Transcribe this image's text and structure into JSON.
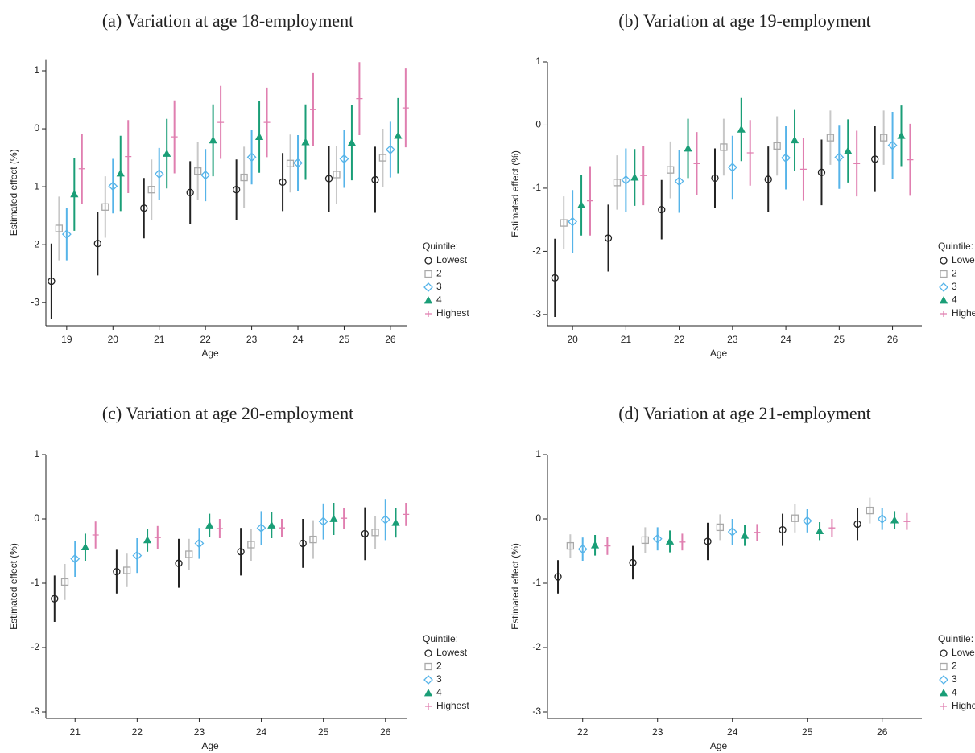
{
  "chart_data": [
    {
      "type": "errorbar",
      "title": "(a) Variation at age 18-employment",
      "xlabel": "Age",
      "ylabel": "Estimated effect (%)",
      "legend_title": "Quintile:",
      "x": [
        19,
        20,
        21,
        22,
        23,
        24,
        25,
        26
      ],
      "xlim": [
        18.55,
        26.35
      ],
      "xticks": [
        19,
        20,
        21,
        22,
        23,
        24,
        25,
        26
      ],
      "ylim": [
        -3.4,
        1.2
      ],
      "yticks": [
        1,
        0,
        -1,
        -2,
        -3
      ],
      "series": [
        {
          "name": "Lowest",
          "color": "#222222",
          "marker": "circle",
          "values": [
            -2.63,
            -1.98,
            -1.37,
            -1.1,
            -1.05,
            -0.92,
            -0.86,
            -0.88
          ],
          "errors": [
            0.65,
            0.55,
            0.52,
            0.54,
            0.52,
            0.5,
            0.57,
            0.57
          ]
        },
        {
          "name": "2",
          "color": "#a9a9a9",
          "marker": "square",
          "values": [
            -1.72,
            -1.35,
            -1.05,
            -0.73,
            -0.84,
            -0.6,
            -0.79,
            -0.5
          ],
          "errors": [
            0.55,
            0.53,
            0.52,
            0.5,
            0.53,
            0.5,
            0.5,
            0.5
          ]
        },
        {
          "name": "3",
          "color": "#56b4e9",
          "marker": "diamond",
          "values": [
            -1.82,
            -0.99,
            -0.78,
            -0.8,
            -0.49,
            -0.59,
            -0.52,
            -0.36
          ],
          "errors": [
            0.45,
            0.47,
            0.45,
            0.45,
            0.47,
            0.48,
            0.5,
            0.48
          ]
        },
        {
          "name": "4",
          "color": "#1a9e77",
          "marker": "triangle",
          "values": [
            -1.13,
            -0.77,
            -0.43,
            -0.2,
            -0.14,
            -0.23,
            -0.24,
            -0.12
          ],
          "errors": [
            0.63,
            0.65,
            0.6,
            0.62,
            0.62,
            0.65,
            0.65,
            0.65
          ]
        },
        {
          "name": "Highest",
          "color": "#e07fb0",
          "marker": "plus",
          "values": [
            -0.69,
            -0.48,
            -0.14,
            0.11,
            0.11,
            0.33,
            0.52,
            0.36
          ],
          "errors": [
            0.6,
            0.63,
            0.63,
            0.63,
            0.6,
            0.63,
            0.63,
            0.68
          ]
        }
      ]
    },
    {
      "type": "errorbar",
      "title": "(b) Variation at age 19-employment",
      "xlabel": "Age",
      "ylabel": "Estimated effect (%)",
      "legend_title": "Quintile:",
      "x": [
        20,
        21,
        22,
        23,
        24,
        25,
        26
      ],
      "xlim": [
        19.53,
        26.55
      ],
      "xticks": [
        20,
        21,
        22,
        23,
        24,
        25,
        26
      ],
      "ylim": [
        -3.18,
        1.0
      ],
      "yticks": [
        1,
        0,
        -1,
        -2,
        -3
      ],
      "series": [
        {
          "name": "Lowest",
          "color": "#222222",
          "marker": "circle",
          "values": [
            -2.42,
            -1.79,
            -1.34,
            -0.84,
            -0.86,
            -0.75,
            -0.54
          ],
          "errors": [
            0.62,
            0.53,
            0.47,
            0.47,
            0.52,
            0.52,
            0.52
          ]
        },
        {
          "name": "2",
          "color": "#a9a9a9",
          "marker": "square",
          "values": [
            -1.55,
            -0.91,
            -0.71,
            -0.35,
            -0.33,
            -0.2,
            -0.2
          ],
          "errors": [
            0.42,
            0.43,
            0.45,
            0.45,
            0.47,
            0.43,
            0.43
          ]
        },
        {
          "name": "3",
          "color": "#56b4e9",
          "marker": "diamond",
          "values": [
            -1.53,
            -0.87,
            -0.89,
            -0.67,
            -0.52,
            -0.51,
            -0.32
          ],
          "errors": [
            0.5,
            0.5,
            0.5,
            0.5,
            0.5,
            0.5,
            0.53
          ]
        },
        {
          "name": "4",
          "color": "#1a9e77",
          "marker": "triangle",
          "values": [
            -1.27,
            -0.83,
            -0.37,
            -0.07,
            -0.24,
            -0.41,
            -0.17
          ],
          "errors": [
            0.48,
            0.45,
            0.47,
            0.5,
            0.48,
            0.5,
            0.48
          ]
        },
        {
          "name": "Highest",
          "color": "#e07fb0",
          "marker": "plus",
          "values": [
            -1.2,
            -0.8,
            -0.61,
            -0.44,
            -0.7,
            -0.61,
            -0.55
          ],
          "errors": [
            0.55,
            0.47,
            0.5,
            0.52,
            0.5,
            0.52,
            0.57
          ]
        }
      ]
    },
    {
      "type": "errorbar",
      "title": "(c) Variation at age 20-employment",
      "xlabel": "Age",
      "ylabel": "Estimated effect (%)",
      "legend_title": "Quintile:",
      "x": [
        21,
        22,
        23,
        24,
        25,
        26
      ],
      "xlim": [
        20.53,
        26.34
      ],
      "xticks": [
        21,
        22,
        23,
        24,
        25,
        26
      ],
      "ylim": [
        -3.1,
        1.0
      ],
      "yticks": [
        1,
        0,
        -1,
        -2,
        -3
      ],
      "series": [
        {
          "name": "Lowest",
          "color": "#222222",
          "marker": "circle",
          "values": [
            -1.24,
            -0.82,
            -0.69,
            -0.51,
            -0.38,
            -0.23
          ],
          "errors": [
            0.36,
            0.34,
            0.38,
            0.37,
            0.38,
            0.41
          ]
        },
        {
          "name": "2",
          "color": "#a9a9a9",
          "marker": "square",
          "values": [
            -0.98,
            -0.8,
            -0.55,
            -0.4,
            -0.32,
            -0.21
          ],
          "errors": [
            0.28,
            0.26,
            0.24,
            0.25,
            0.3,
            0.26
          ]
        },
        {
          "name": "3",
          "color": "#56b4e9",
          "marker": "diamond",
          "values": [
            -0.62,
            -0.57,
            -0.38,
            -0.14,
            -0.04,
            -0.01
          ],
          "errors": [
            0.28,
            0.27,
            0.24,
            0.26,
            0.28,
            0.32
          ]
        },
        {
          "name": "4",
          "color": "#1a9e77",
          "marker": "triangle",
          "values": [
            -0.44,
            -0.33,
            -0.1,
            -0.1,
            0.0,
            -0.06
          ],
          "errors": [
            0.21,
            0.18,
            0.18,
            0.2,
            0.25,
            0.23
          ]
        },
        {
          "name": "Highest",
          "color": "#e07fb0",
          "marker": "plus",
          "values": [
            -0.25,
            -0.29,
            -0.15,
            -0.14,
            0.01,
            0.07
          ],
          "errors": [
            0.21,
            0.18,
            0.15,
            0.14,
            0.16,
            0.18
          ]
        }
      ]
    },
    {
      "type": "errorbar",
      "title": "(d) Variation at age 21-employment",
      "xlabel": "Age",
      "ylabel": "Estimated effect (%)",
      "legend_title": "Quintile:",
      "x": [
        22,
        23,
        24,
        25,
        26
      ],
      "xlim": [
        21.53,
        26.53
      ],
      "xticks": [
        22,
        23,
        24,
        25,
        26
      ],
      "ylim": [
        -3.1,
        1.0
      ],
      "yticks": [
        1,
        0,
        -1,
        -2,
        -3
      ],
      "series": [
        {
          "name": "Lowest",
          "color": "#222222",
          "marker": "circle",
          "values": [
            -0.9,
            -0.68,
            -0.35,
            -0.17,
            -0.08
          ],
          "errors": [
            0.26,
            0.26,
            0.29,
            0.25,
            0.25
          ]
        },
        {
          "name": "2",
          "color": "#a9a9a9",
          "marker": "square",
          "values": [
            -0.42,
            -0.33,
            -0.13,
            0.01,
            0.13
          ],
          "errors": [
            0.18,
            0.2,
            0.2,
            0.22,
            0.2
          ]
        },
        {
          "name": "3",
          "color": "#56b4e9",
          "marker": "diamond",
          "values": [
            -0.47,
            -0.31,
            -0.2,
            -0.03,
            0.0
          ],
          "errors": [
            0.18,
            0.18,
            0.2,
            0.18,
            0.17
          ]
        },
        {
          "name": "4",
          "color": "#1a9e77",
          "marker": "triangle",
          "values": [
            -0.41,
            -0.35,
            -0.26,
            -0.19,
            -0.02
          ],
          "errors": [
            0.16,
            0.17,
            0.16,
            0.14,
            0.14
          ]
        },
        {
          "name": "Highest",
          "color": "#e07fb0",
          "marker": "plus",
          "values": [
            -0.42,
            -0.36,
            -0.21,
            -0.14,
            -0.04
          ],
          "errors": [
            0.14,
            0.13,
            0.13,
            0.14,
            0.13
          ]
        }
      ]
    }
  ]
}
